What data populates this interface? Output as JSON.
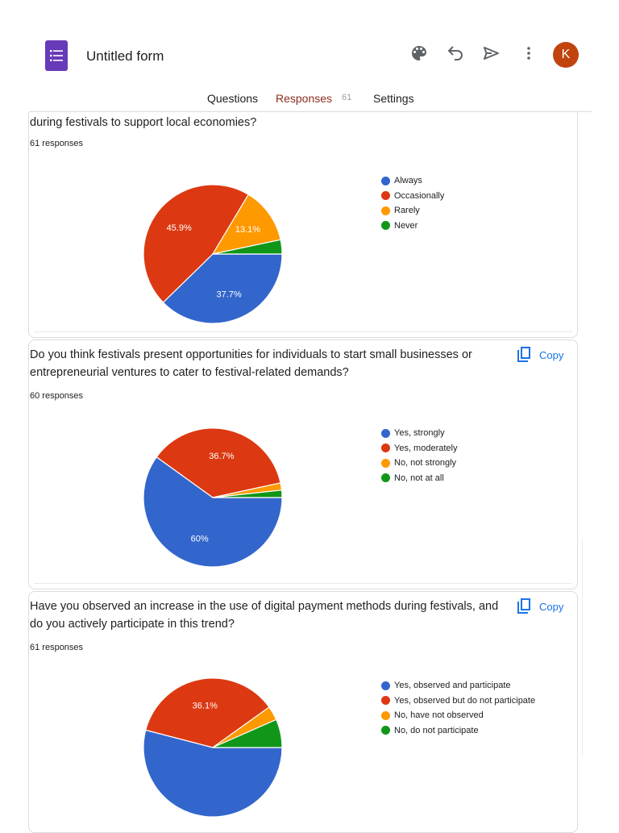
{
  "header": {
    "title": "Untitled form",
    "avatar_letter": "K",
    "icons": [
      "palette-icon",
      "undo-icon",
      "send-icon",
      "more-vert-icon"
    ]
  },
  "tabs": [
    {
      "label": "Questions",
      "active": false
    },
    {
      "label": "Responses",
      "active": true,
      "count": "61"
    },
    {
      "label": "Settings",
      "active": false
    }
  ],
  "copy_label": "Copy",
  "colors": {
    "blue": "#3366cc",
    "red": "#dc3912",
    "orange": "#ff9900",
    "green": "#109618",
    "accent": "#8c2b1f",
    "brand": "#673ab7",
    "link": "#1a73e8"
  },
  "questions": [
    {
      "title": "during festivals to support local economies?",
      "responses": "61 responses",
      "chart_data": {
        "type": "pie",
        "categories": [
          "Always",
          "Occasionally",
          "Rarely",
          "Never"
        ],
        "values": [
          37.7,
          45.9,
          13.1,
          3.3
        ],
        "labels": [
          "37.7%",
          "45.9%",
          "13.1%",
          ""
        ],
        "colors": [
          "#3366cc",
          "#dc3912",
          "#ff9900",
          "#109618"
        ]
      }
    },
    {
      "title": "Do you think festivals present opportunities for individuals to start small businesses or entrepreneurial ventures to cater to festival-related demands?",
      "responses": "60 responses",
      "chart_data": {
        "type": "pie",
        "categories": [
          "Yes, strongly",
          "Yes, moderately",
          "No, not strongly",
          "No, not at all"
        ],
        "values": [
          60,
          36.7,
          1.7,
          1.7
        ],
        "labels": [
          "60%",
          "36.7%",
          "",
          ""
        ],
        "colors": [
          "#3366cc",
          "#dc3912",
          "#ff9900",
          "#109618"
        ]
      }
    },
    {
      "title": "Have you observed an increase in the use of digital payment methods during festivals, and do you actively participate in this trend?",
      "responses": "61 responses",
      "chart_data": {
        "type": "pie",
        "categories": [
          "Yes, observed and participate",
          "Yes, observed but do not participate",
          "No, have not observed",
          "No, do not participate"
        ],
        "values": [
          54.1,
          36.1,
          3.3,
          6.6
        ],
        "labels": [
          "",
          "36.1%",
          "",
          ""
        ],
        "colors": [
          "#3366cc",
          "#dc3912",
          "#ff9900",
          "#109618"
        ]
      }
    }
  ]
}
